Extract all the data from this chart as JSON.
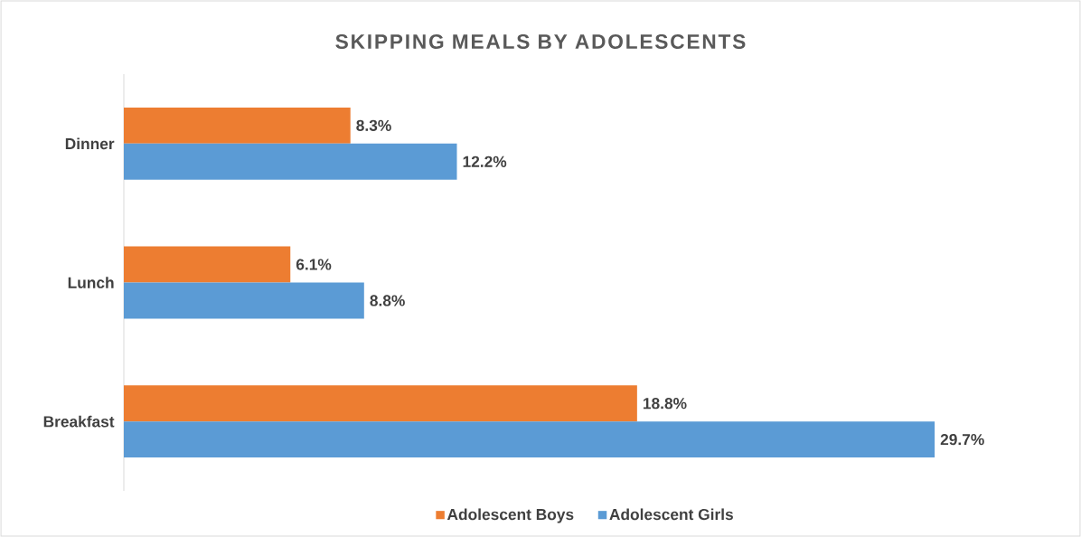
{
  "chart_data": {
    "type": "bar",
    "orientation": "horizontal",
    "title": "SKIPPING MEALS BY ADOLESCENTS",
    "categories": [
      "Dinner",
      "Lunch",
      "Breakfast"
    ],
    "series": [
      {
        "name": "Adolescent Boys",
        "color": "#ed7d31",
        "values": [
          8.3,
          6.1,
          18.8
        ],
        "value_labels": [
          "8.3%",
          "6.1%",
          "18.8%"
        ]
      },
      {
        "name": "Adolescent Girls",
        "color": "#5b9bd5",
        "values": [
          12.2,
          8.8,
          29.7
        ],
        "value_labels": [
          "12.2%",
          "8.8%",
          "29.7%"
        ]
      }
    ],
    "legend": "bottom"
  }
}
